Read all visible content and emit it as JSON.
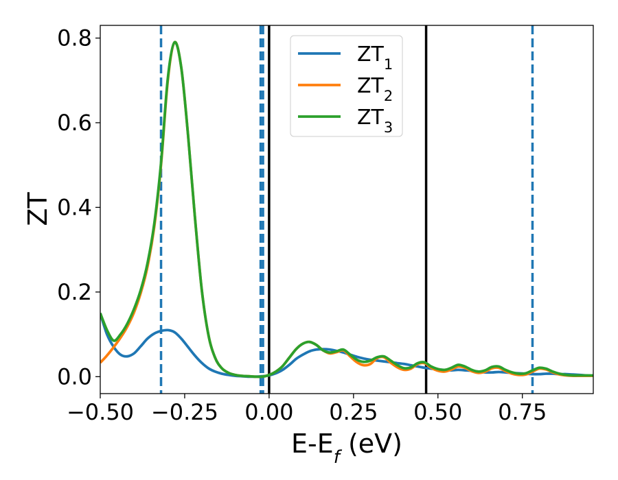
{
  "chart_data": {
    "type": "line",
    "xlabel": "E-E",
    "xlabel_sub": "f",
    "xlabel_unit": " (eV)",
    "ylabel": "ZT",
    "xlim": [
      -0.5,
      0.96
    ],
    "ylim": [
      -0.04,
      0.83
    ],
    "xticks": [
      -0.5,
      -0.25,
      0.0,
      0.25,
      0.5,
      0.75
    ],
    "xtick_labels": [
      "−0.50",
      "−0.25",
      "0.00",
      "0.25",
      "0.50",
      "0.75"
    ],
    "yticks": [
      0.0,
      0.2,
      0.4,
      0.6,
      0.8
    ],
    "ytick_labels": [
      "0.0",
      "0.2",
      "0.4",
      "0.6",
      "0.8"
    ],
    "grid": false,
    "legend_position": "top-center",
    "vlines": [
      {
        "x": -0.32,
        "style": "dashed",
        "color": "#1f77b4"
      },
      {
        "x": -0.025,
        "style": "dashed",
        "color": "#1f77b4"
      },
      {
        "x": -0.018,
        "style": "dashed",
        "color": "#1f77b4"
      },
      {
        "x": 0.78,
        "style": "dashed",
        "color": "#1f77b4"
      },
      {
        "x": 0.0,
        "style": "solid",
        "color": "#000000"
      },
      {
        "x": 0.465,
        "style": "solid",
        "color": "#000000"
      }
    ],
    "series": [
      {
        "name": "ZT",
        "sub": "1",
        "color": "#1f77b4",
        "x": [
          -0.5,
          -0.48,
          -0.46,
          -0.44,
          -0.42,
          -0.4,
          -0.38,
          -0.36,
          -0.34,
          -0.32,
          -0.3,
          -0.28,
          -0.26,
          -0.24,
          -0.22,
          -0.2,
          -0.18,
          -0.16,
          -0.14,
          -0.12,
          -0.1,
          -0.08,
          -0.06,
          -0.04,
          -0.02,
          0.0,
          0.02,
          0.04,
          0.06,
          0.08,
          0.1,
          0.12,
          0.14,
          0.16,
          0.18,
          0.2,
          0.22,
          0.24,
          0.26,
          0.28,
          0.3,
          0.32,
          0.34,
          0.36,
          0.38,
          0.4,
          0.42,
          0.44,
          0.46,
          0.48,
          0.5,
          0.52,
          0.54,
          0.56,
          0.58,
          0.6,
          0.62,
          0.64,
          0.66,
          0.68,
          0.7,
          0.72,
          0.74,
          0.76,
          0.78,
          0.8,
          0.82,
          0.84,
          0.86,
          0.88,
          0.9,
          0.92,
          0.94,
          0.96
        ],
        "y": [
          0.15,
          0.1,
          0.07,
          0.052,
          0.048,
          0.055,
          0.072,
          0.09,
          0.102,
          0.108,
          0.11,
          0.105,
          0.09,
          0.07,
          0.05,
          0.033,
          0.02,
          0.012,
          0.007,
          0.004,
          0.002,
          0.001,
          0.0,
          0.0,
          0.001,
          0.003,
          0.008,
          0.016,
          0.028,
          0.042,
          0.052,
          0.06,
          0.064,
          0.065,
          0.064,
          0.061,
          0.057,
          0.052,
          0.047,
          0.043,
          0.04,
          0.038,
          0.036,
          0.034,
          0.032,
          0.03,
          0.027,
          0.024,
          0.021,
          0.019,
          0.017,
          0.016,
          0.015,
          0.016,
          0.015,
          0.014,
          0.012,
          0.01,
          0.01,
          0.011,
          0.01,
          0.009,
          0.008,
          0.007,
          0.006,
          0.006,
          0.007,
          0.007,
          0.006,
          0.006,
          0.005,
          0.004,
          0.003,
          0.002
        ]
      },
      {
        "name": "ZT",
        "sub": "2",
        "color": "#ff7f0e",
        "x": [
          -0.5,
          -0.48,
          -0.46,
          -0.44,
          -0.42,
          -0.4,
          -0.38,
          -0.36,
          -0.34,
          -0.32,
          -0.3,
          -0.28,
          -0.26,
          -0.24,
          -0.22,
          -0.2,
          -0.18,
          -0.16,
          -0.14,
          -0.12,
          -0.1,
          -0.08,
          -0.06,
          -0.04,
          -0.02,
          0.0,
          0.02,
          0.04,
          0.06,
          0.08,
          0.1,
          0.12,
          0.14,
          0.16,
          0.18,
          0.2,
          0.22,
          0.24,
          0.26,
          0.28,
          0.3,
          0.32,
          0.34,
          0.36,
          0.38,
          0.4,
          0.42,
          0.44,
          0.46,
          0.48,
          0.5,
          0.52,
          0.54,
          0.56,
          0.58,
          0.6,
          0.62,
          0.64,
          0.66,
          0.68,
          0.7,
          0.72,
          0.74,
          0.76,
          0.78,
          0.8,
          0.82,
          0.84,
          0.86,
          0.88,
          0.9,
          0.92,
          0.94,
          0.96
        ],
        "y": [
          0.033,
          0.05,
          0.07,
          0.092,
          0.118,
          0.152,
          0.198,
          0.26,
          0.355,
          0.5,
          0.7,
          0.79,
          0.73,
          0.57,
          0.38,
          0.21,
          0.1,
          0.045,
          0.02,
          0.009,
          0.004,
          0.002,
          0.001,
          0.0,
          0.0,
          0.004,
          0.012,
          0.025,
          0.045,
          0.065,
          0.078,
          0.082,
          0.075,
          0.062,
          0.055,
          0.058,
          0.062,
          0.048,
          0.034,
          0.027,
          0.03,
          0.044,
          0.046,
          0.033,
          0.022,
          0.016,
          0.019,
          0.03,
          0.032,
          0.021,
          0.014,
          0.012,
          0.017,
          0.024,
          0.021,
          0.013,
          0.009,
          0.012,
          0.02,
          0.021,
          0.013,
          0.007,
          0.004,
          0.005,
          0.012,
          0.019,
          0.017,
          0.01,
          0.005,
          0.003,
          0.002,
          0.002,
          0.002,
          0.002
        ]
      },
      {
        "name": "ZT",
        "sub": "3",
        "color": "#2ca02c",
        "x": [
          -0.5,
          -0.48,
          -0.46,
          -0.44,
          -0.42,
          -0.4,
          -0.38,
          -0.36,
          -0.34,
          -0.32,
          -0.3,
          -0.28,
          -0.26,
          -0.24,
          -0.22,
          -0.2,
          -0.18,
          -0.16,
          -0.14,
          -0.12,
          -0.1,
          -0.08,
          -0.06,
          -0.04,
          -0.02,
          0.0,
          0.02,
          0.04,
          0.06,
          0.08,
          0.1,
          0.12,
          0.14,
          0.16,
          0.18,
          0.2,
          0.22,
          0.24,
          0.26,
          0.28,
          0.3,
          0.32,
          0.34,
          0.36,
          0.38,
          0.4,
          0.42,
          0.44,
          0.46,
          0.48,
          0.5,
          0.52,
          0.54,
          0.56,
          0.58,
          0.6,
          0.62,
          0.64,
          0.66,
          0.68,
          0.7,
          0.72,
          0.74,
          0.76,
          0.78,
          0.8,
          0.82,
          0.84,
          0.86,
          0.88,
          0.9,
          0.92,
          0.94,
          0.96
        ],
        "y": [
          0.15,
          0.11,
          0.085,
          0.1,
          0.125,
          0.16,
          0.205,
          0.268,
          0.362,
          0.505,
          0.705,
          0.79,
          0.73,
          0.57,
          0.38,
          0.21,
          0.1,
          0.045,
          0.02,
          0.009,
          0.004,
          0.002,
          0.001,
          0.0,
          0.0,
          0.004,
          0.012,
          0.025,
          0.045,
          0.065,
          0.078,
          0.082,
          0.075,
          0.062,
          0.057,
          0.06,
          0.064,
          0.052,
          0.04,
          0.035,
          0.038,
          0.046,
          0.048,
          0.038,
          0.027,
          0.02,
          0.022,
          0.032,
          0.034,
          0.024,
          0.018,
          0.016,
          0.021,
          0.028,
          0.024,
          0.016,
          0.012,
          0.015,
          0.023,
          0.024,
          0.016,
          0.01,
          0.007,
          0.008,
          0.015,
          0.021,
          0.019,
          0.012,
          0.007,
          0.004,
          0.003,
          0.003,
          0.003,
          0.003
        ]
      }
    ]
  }
}
